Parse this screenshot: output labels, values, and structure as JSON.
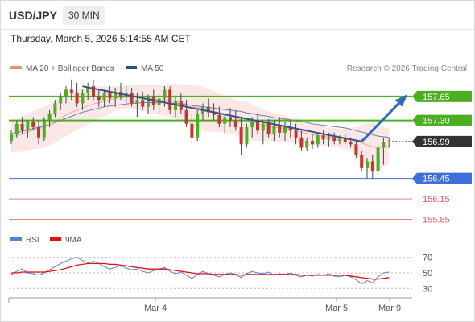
{
  "header": {
    "symbol": "USD/JPY",
    "interval": "30 MIN",
    "datetime": "Thursday, March 5, 2026 5:14:55 AM CET"
  },
  "legend": {
    "items": [
      {
        "label": "MA 20 + Bollinger Bands",
        "color": "#f28b82"
      },
      {
        "label": "MA 50",
        "color": "#2f4f8a"
      }
    ],
    "copyright": "Research © 2026 Trading Central"
  },
  "rsi_legend": {
    "items": [
      {
        "label": "RSI",
        "color": "#5b7fd6"
      },
      {
        "label": "9MA",
        "color": "#e0101a"
      }
    ]
  },
  "colors": {
    "up": "#4caf1f",
    "down": "#c0392b",
    "resistance": "#4caf1f",
    "support": "#3f6fd8",
    "target": "#e05a5a",
    "current": "#333333",
    "arrow": "#2f6ab8"
  },
  "chart_data": [
    {
      "type": "candlestick",
      "title": "",
      "x_ticks": [
        "Mar 4",
        "Mar 5",
        "Mar 9"
      ],
      "ylim": [
        155.75,
        157.92
      ],
      "levels": [
        {
          "value": 157.65,
          "label": "157.65",
          "kind": "resistance"
        },
        {
          "value": 157.3,
          "label": "157.30",
          "kind": "resistance"
        },
        {
          "value": 156.99,
          "label": "156.99",
          "kind": "current"
        },
        {
          "value": 156.45,
          "label": "156.45",
          "kind": "support"
        },
        {
          "value": 156.15,
          "label": "156.15",
          "kind": "target"
        },
        {
          "value": 155.85,
          "label": "155.85",
          "kind": "target"
        }
      ],
      "candles": [
        [
          157.0,
          157.15,
          156.95,
          157.1
        ],
        [
          157.1,
          157.3,
          157.05,
          157.25
        ],
        [
          157.25,
          157.35,
          157.1,
          157.15
        ],
        [
          157.15,
          157.3,
          157.05,
          157.28
        ],
        [
          157.28,
          157.35,
          157.15,
          157.2
        ],
        [
          157.2,
          157.3,
          156.95,
          157.05
        ],
        [
          157.05,
          157.35,
          157.0,
          157.3
        ],
        [
          157.3,
          157.45,
          157.2,
          157.4
        ],
        [
          157.4,
          157.6,
          157.35,
          157.55
        ],
        [
          157.55,
          157.7,
          157.45,
          157.65
        ],
        [
          157.65,
          157.8,
          157.55,
          157.75
        ],
        [
          157.75,
          157.9,
          157.6,
          157.7
        ],
        [
          157.7,
          157.85,
          157.5,
          157.55
        ],
        [
          157.55,
          157.75,
          157.45,
          157.7
        ],
        [
          157.7,
          157.85,
          157.6,
          157.8
        ],
        [
          157.8,
          157.9,
          157.6,
          157.65
        ],
        [
          157.65,
          157.75,
          157.5,
          157.6
        ],
        [
          157.6,
          157.75,
          157.5,
          157.7
        ],
        [
          157.7,
          157.8,
          157.55,
          157.62
        ],
        [
          157.62,
          157.78,
          157.5,
          157.72
        ],
        [
          157.72,
          157.85,
          157.6,
          157.66
        ],
        [
          157.66,
          157.8,
          157.55,
          157.7
        ],
        [
          157.7,
          157.78,
          157.5,
          157.55
        ],
        [
          157.55,
          157.7,
          157.35,
          157.6
        ],
        [
          157.6,
          157.72,
          157.45,
          157.5
        ],
        [
          157.5,
          157.68,
          157.4,
          157.65
        ],
        [
          157.65,
          157.75,
          157.45,
          157.52
        ],
        [
          157.52,
          157.7,
          157.4,
          157.62
        ],
        [
          157.62,
          157.8,
          157.5,
          157.75
        ],
        [
          157.75,
          157.8,
          157.4,
          157.45
        ],
        [
          157.45,
          157.65,
          157.35,
          157.58
        ],
        [
          157.58,
          157.7,
          157.4,
          157.45
        ],
        [
          157.45,
          157.6,
          157.2,
          157.25
        ],
        [
          157.25,
          157.4,
          156.95,
          157.05
        ],
        [
          157.05,
          157.45,
          157.0,
          157.4
        ],
        [
          157.4,
          157.55,
          157.3,
          157.5
        ],
        [
          157.5,
          157.62,
          157.35,
          157.42
        ],
        [
          157.42,
          157.55,
          157.3,
          157.38
        ],
        [
          157.38,
          157.5,
          157.2,
          157.25
        ],
        [
          157.25,
          157.4,
          157.1,
          157.35
        ],
        [
          157.35,
          157.48,
          157.2,
          157.3
        ],
        [
          157.3,
          157.45,
          157.15,
          157.2
        ],
        [
          157.2,
          157.35,
          156.8,
          156.95
        ],
        [
          156.95,
          157.25,
          156.9,
          157.2
        ],
        [
          157.2,
          157.35,
          157.05,
          157.28
        ],
        [
          157.28,
          157.4,
          157.1,
          157.15
        ],
        [
          157.15,
          157.3,
          156.95,
          157.25
        ],
        [
          157.25,
          157.32,
          157.05,
          157.1
        ],
        [
          157.1,
          157.3,
          157.0,
          157.22
        ],
        [
          157.22,
          157.35,
          157.05,
          157.12
        ],
        [
          157.12,
          157.28,
          157.0,
          157.2
        ],
        [
          157.2,
          157.3,
          157.05,
          157.15
        ],
        [
          157.15,
          157.25,
          156.95,
          157.05
        ],
        [
          157.05,
          157.15,
          156.85,
          156.9
        ],
        [
          156.9,
          157.05,
          156.85,
          157.0
        ],
        [
          157.0,
          157.1,
          156.88,
          156.95
        ],
        [
          156.95,
          157.1,
          156.9,
          157.08
        ],
        [
          157.08,
          157.15,
          156.95,
          157.02
        ],
        [
          157.02,
          157.12,
          156.92,
          157.05
        ],
        [
          157.05,
          157.12,
          156.95,
          157.0
        ],
        [
          157.0,
          157.08,
          156.95,
          157.03
        ],
        [
          157.03,
          157.1,
          156.95,
          156.98
        ],
        [
          156.98,
          157.05,
          156.9,
          156.95
        ],
        [
          156.95,
          157.0,
          156.75,
          156.8
        ],
        [
          156.8,
          156.85,
          156.55,
          156.6
        ],
        [
          156.6,
          156.75,
          156.45,
          156.7
        ],
        [
          156.7,
          156.8,
          156.45,
          156.55
        ],
        [
          156.55,
          156.95,
          156.5,
          156.9
        ],
        [
          156.9,
          157.05,
          156.65,
          156.98
        ],
        [
          156.98,
          157.05,
          156.9,
          156.99
        ]
      ],
      "ma20": [
        157.05,
        157.08,
        157.1,
        157.13,
        157.16,
        157.18,
        157.2,
        157.24,
        157.28,
        157.33,
        157.38,
        157.42,
        157.45,
        157.48,
        157.51,
        157.54,
        157.56,
        157.58,
        157.6,
        157.62,
        157.63,
        157.64,
        157.64,
        157.64,
        157.63,
        157.62,
        157.61,
        157.6,
        157.6,
        157.59,
        157.58,
        157.56,
        157.54,
        157.51,
        157.49,
        157.47,
        157.45,
        157.43,
        157.41,
        157.39,
        157.37,
        157.34,
        157.31,
        157.29,
        157.27,
        157.25,
        157.23,
        157.21,
        157.2,
        157.19,
        157.18,
        157.17,
        157.15,
        157.13,
        157.11,
        157.09,
        157.08,
        157.07,
        157.06,
        157.05,
        157.04,
        157.03,
        157.02,
        157.0,
        156.97,
        156.94,
        156.91,
        156.9,
        156.91,
        156.92
      ],
      "ma50": [
        157.1,
        157.12,
        157.14,
        157.16,
        157.18,
        157.2,
        157.22,
        157.24,
        157.27,
        157.3,
        157.33,
        157.36,
        157.39,
        157.42,
        157.44,
        157.46,
        157.48,
        157.5,
        157.51,
        157.52,
        157.53,
        157.54,
        157.55,
        157.55,
        157.56,
        157.56,
        157.56,
        157.56,
        157.56,
        157.55,
        157.55,
        157.54,
        157.53,
        157.52,
        157.51,
        157.5,
        157.49,
        157.48,
        157.47,
        157.46,
        157.45,
        157.44,
        157.43,
        157.41,
        157.4,
        157.38,
        157.37,
        157.36,
        157.34,
        157.33,
        157.32,
        157.31,
        157.29,
        157.28,
        157.27,
        157.25,
        157.24,
        157.23,
        157.22,
        157.21,
        157.2,
        157.19,
        157.17,
        157.15,
        157.13,
        157.11,
        157.09,
        157.07,
        157.06,
        157.05
      ],
      "bb_width": [
        0.22,
        0.24,
        0.26,
        0.27,
        0.28,
        0.29,
        0.3,
        0.3,
        0.31,
        0.31,
        0.31,
        0.3,
        0.29,
        0.28,
        0.27,
        0.26,
        0.24,
        0.22,
        0.2,
        0.18,
        0.17,
        0.17,
        0.17,
        0.18,
        0.19,
        0.2,
        0.21,
        0.22,
        0.23,
        0.24,
        0.26,
        0.27,
        0.28,
        0.3,
        0.32,
        0.32,
        0.31,
        0.3,
        0.28,
        0.27,
        0.26,
        0.26,
        0.28,
        0.28,
        0.27,
        0.25,
        0.23,
        0.22,
        0.21,
        0.2,
        0.19,
        0.18,
        0.18,
        0.18,
        0.17,
        0.16,
        0.15,
        0.14,
        0.14,
        0.14,
        0.14,
        0.15,
        0.17,
        0.2,
        0.26,
        0.32,
        0.35,
        0.34,
        0.3,
        0.26
      ],
      "trendline": [
        [
          13,
          157.8
        ],
        [
          64,
          156.99
        ]
      ],
      "arrow": [
        [
          64,
          156.99
        ],
        [
          72,
          157.65
        ]
      ]
    },
    {
      "type": "line",
      "title": "",
      "ylim": [
        22,
        78
      ],
      "y_ticks": [
        70,
        50,
        30
      ],
      "series": [
        {
          "name": "RSI",
          "values": [
            48,
            52,
            55,
            50,
            49,
            47,
            50,
            54,
            58,
            62,
            65,
            68,
            70,
            66,
            63,
            65,
            62,
            58,
            55,
            57,
            60,
            56,
            54,
            55,
            52,
            50,
            53,
            55,
            57,
            52,
            49,
            51,
            47,
            43,
            48,
            52,
            49,
            47,
            45,
            48,
            50,
            48,
            44,
            49,
            52,
            50,
            49,
            51,
            47,
            49,
            48,
            50,
            47,
            45,
            47,
            46,
            48,
            47,
            49,
            46,
            45,
            47,
            45,
            41,
            36,
            40,
            37,
            45,
            50,
            51
          ]
        },
        {
          "name": "9MA",
          "values": [
            50,
            50,
            51,
            51,
            51,
            51,
            51,
            52,
            53,
            54,
            56,
            58,
            60,
            61,
            62,
            62,
            62,
            62,
            61,
            61,
            60,
            59,
            58,
            57,
            56,
            55,
            55,
            55,
            55,
            54,
            53,
            52,
            51,
            50,
            49,
            49,
            49,
            48,
            48,
            48,
            48,
            48,
            47,
            48,
            48,
            48,
            48,
            48,
            48,
            48,
            48,
            48,
            48,
            47,
            47,
            47,
            47,
            47,
            47,
            47,
            47,
            47,
            46,
            45,
            44,
            43,
            42,
            42,
            43,
            44
          ]
        }
      ]
    }
  ]
}
